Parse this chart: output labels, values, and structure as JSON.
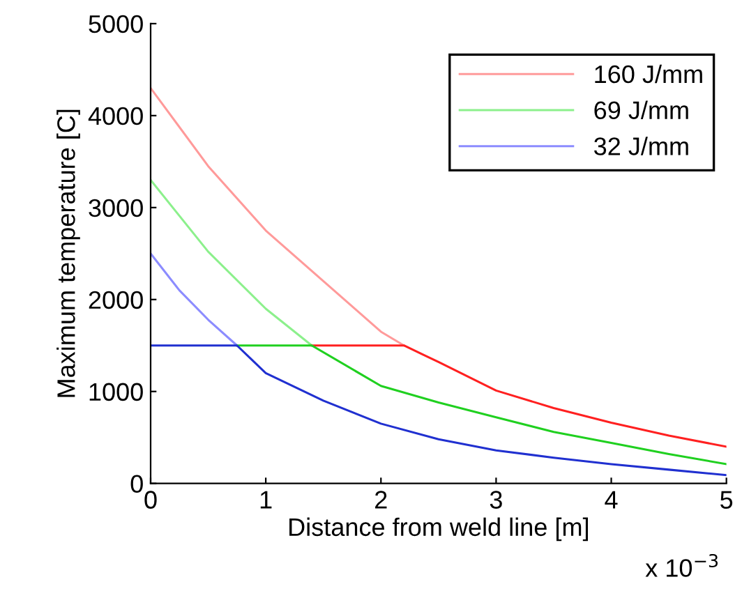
{
  "chart_data": {
    "type": "line",
    "xlabel": "Distance from weld line [m]",
    "ylabel": "Maximum temperature [C]",
    "xlim": [
      0,
      5
    ],
    "xticks": [
      0,
      1,
      2,
      3,
      4,
      5
    ],
    "ylim": [
      0,
      5000
    ],
    "yticks": [
      0,
      1000,
      2000,
      3000,
      4000,
      5000
    ],
    "grid": false,
    "legend": "top right",
    "marker": "none",
    "line_style": "solid",
    "annotations": [
      "x 10$^{−3}$"
    ],
    "series": [
      {
        "name": "160 J/mm",
        "color": "#ff9a9a",
        "x": [
          0,
          0.5,
          1,
          1.5,
          2,
          2.2
        ],
        "values": [
          4300,
          3450,
          2750,
          2200,
          1650,
          1500
        ]
      },
      {
        "name": "69 J/mm",
        "color": "#8cf08c",
        "x": [
          0,
          0.5,
          1,
          1.4
        ],
        "values": [
          3300,
          2520,
          1900,
          1500
        ]
      },
      {
        "name": "32 J/mm",
        "color": "#8c8cff",
        "x": [
          0,
          0.25,
          0.5,
          0.75
        ],
        "values": [
          2500,
          2100,
          1780,
          1500
        ]
      },
      {
        "color": "#ff2020",
        "x": [
          1.4,
          2.2,
          2.5,
          3,
          3.5,
          4,
          4.5,
          5
        ],
        "values": [
          1500,
          1500,
          1320,
          1010,
          820,
          660,
          520,
          400
        ]
      },
      {
        "color": "#20d020",
        "x": [
          0.75,
          1.4,
          2,
          2.5,
          3,
          3.5,
          4,
          4.5,
          5
        ],
        "values": [
          1500,
          1500,
          1060,
          880,
          720,
          560,
          440,
          320,
          210
        ]
      },
      {
        "color": "#2030d0",
        "x": [
          0,
          0.75,
          1,
          1.5,
          2,
          2.5,
          3,
          3.5,
          4,
          4.5,
          5
        ],
        "values": [
          1500,
          1500,
          1200,
          900,
          650,
          480,
          360,
          280,
          210,
          150,
          90
        ]
      }
    ]
  }
}
